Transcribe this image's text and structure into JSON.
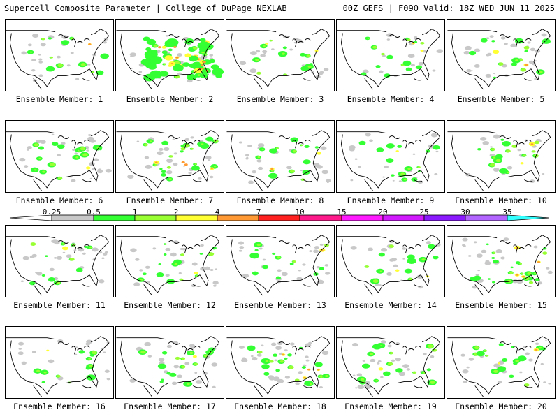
{
  "header": {
    "title_left": "Supercell Composite Parameter | College of DuPage NEXLAB",
    "title_right": "00Z GEFS | F090 Valid: 18Z WED JUN 11 2025"
  },
  "legend": {
    "ticks": [
      "0.25",
      "0.5",
      "1",
      "2",
      "4",
      "7",
      "10",
      "15",
      "20",
      "25",
      "30",
      "35"
    ],
    "colors": [
      "#ffffff",
      "#c8c8c8",
      "#33ff33",
      "#99ff33",
      "#ffff33",
      "#ff9933",
      "#ff2020",
      "#ff1a8c",
      "#ff1aff",
      "#d21aff",
      "#8c1aff",
      "#b366ff",
      "#33ffff"
    ]
  },
  "panels": [
    {
      "label": "Ensemble Member: 1"
    },
    {
      "label": "Ensemble Member: 2"
    },
    {
      "label": "Ensemble Member: 3"
    },
    {
      "label": "Ensemble Member: 4"
    },
    {
      "label": "Ensemble Member: 5"
    },
    {
      "label": "Ensemble Member: 6"
    },
    {
      "label": "Ensemble Member: 7"
    },
    {
      "label": "Ensemble Member: 8"
    },
    {
      "label": "Ensemble Member: 9"
    },
    {
      "label": "Ensemble Member: 10"
    },
    {
      "label": "Ensemble Member: 11"
    },
    {
      "label": "Ensemble Member: 12"
    },
    {
      "label": "Ensemble Member: 13"
    },
    {
      "label": "Ensemble Member: 14"
    },
    {
      "label": "Ensemble Member: 15"
    },
    {
      "label": "Ensemble Member: 16"
    },
    {
      "label": "Ensemble Member: 17"
    },
    {
      "label": "Ensemble Member: 18"
    },
    {
      "label": "Ensemble Member: 19"
    },
    {
      "label": "Ensemble Member: 20"
    }
  ]
}
